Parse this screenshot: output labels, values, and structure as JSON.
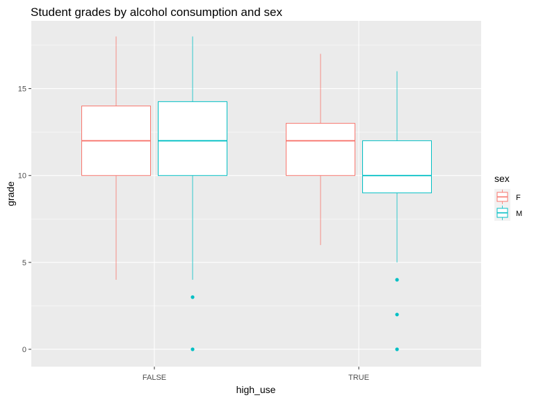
{
  "chart_data": {
    "type": "boxplot",
    "title": "Student grades by alcohol consumption and sex",
    "xlabel": "high_use",
    "ylabel": "grade",
    "categories": [
      "FALSE",
      "TRUE"
    ],
    "y_ticks": [
      0,
      5,
      10,
      15
    ],
    "ylim": [
      -1,
      18.9
    ],
    "legend": {
      "title": "sex",
      "position": "right"
    },
    "grid": true,
    "series": [
      {
        "name": "F",
        "color": "#F8766D",
        "boxes": [
          {
            "category": "FALSE",
            "min": 4,
            "q1": 10,
            "median": 12,
            "q3": 14,
            "max": 18,
            "outliers": []
          },
          {
            "category": "TRUE",
            "min": 6,
            "q1": 10,
            "median": 12,
            "q3": 13,
            "max": 17,
            "outliers": []
          }
        ]
      },
      {
        "name": "M",
        "color": "#00BFC4",
        "boxes": [
          {
            "category": "FALSE",
            "min": 4,
            "q1": 10,
            "median": 12,
            "q3": 14.25,
            "max": 18,
            "outliers": [
              3,
              0
            ]
          },
          {
            "category": "TRUE",
            "min": 5,
            "q1": 9,
            "median": 10,
            "q3": 12,
            "max": 16,
            "outliers": [
              4,
              2,
              0
            ]
          }
        ]
      }
    ]
  },
  "colors": {
    "panel_background": "#EBEBEB",
    "grid": "#FFFFFF",
    "tick_label": "#4D4D4D"
  }
}
